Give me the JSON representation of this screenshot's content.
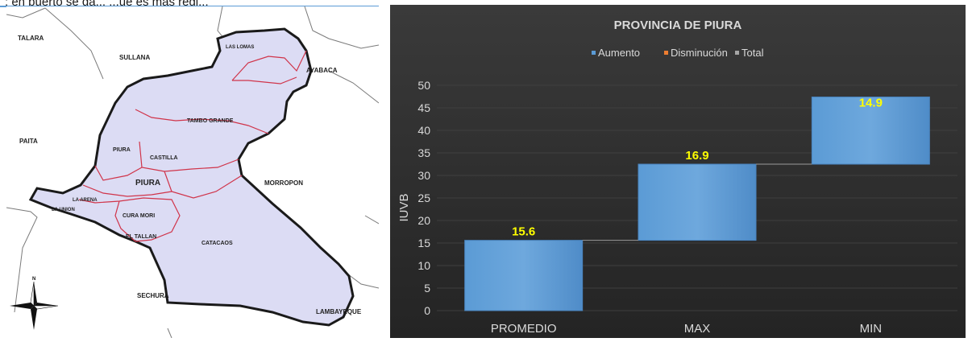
{
  "caption_fragment": "; en puerto se da...  ...ue es mas regi...",
  "map": {
    "labels": {
      "talara": "TALARA",
      "sullana": "SULLANA",
      "las_lomas": "LAS LOMAS",
      "ayabaca": "AYABACA",
      "tambo_grande": "TAMBO GRANDE",
      "paita": "PAITA",
      "piura_district": "PIURA",
      "castilla": "CASTILLA",
      "piura_province": "PIURA",
      "morropon": "MORROPON",
      "la_arena": "LA ARENA",
      "la_union": "LA UNION",
      "cura_mori": "CURA MORI",
      "el_tallan": "EL TALLAN",
      "catacaos": "CATACAOS",
      "sechura": "SECHURA",
      "lambayeque": "LAMBAYEQUE"
    },
    "colors": {
      "fill": "#dcdcf4",
      "border": "#1a1a1a",
      "districts": "#d0344a"
    },
    "compass_icon": "compass-rose-icon"
  },
  "chart_data": {
    "type": "waterfall",
    "title": "PROVINCIA DE PIURA",
    "legend": [
      "Aumento",
      "Disminución",
      "Total"
    ],
    "legend_colors": [
      "#5b9bd5",
      "#ed7d31",
      "#a5a5a5"
    ],
    "legend_position": "top",
    "ylabel": "IUVB",
    "categories": [
      "PROMEDIO",
      "MAX",
      "MIN"
    ],
    "values": [
      15.6,
      16.9,
      14.9
    ],
    "data_labels": [
      "15.6",
      "16.9",
      "14.9"
    ],
    "ylim": [
      0,
      50
    ],
    "yticks": [
      0,
      5,
      10,
      15,
      20,
      25,
      30,
      35,
      40,
      45,
      50
    ],
    "grid": true,
    "colors": {
      "background": "#2e2e2e",
      "bar": "#5b9bd5",
      "label": "#ffff00",
      "text": "#d9d9d9",
      "grid": "#3f3f3f"
    }
  }
}
